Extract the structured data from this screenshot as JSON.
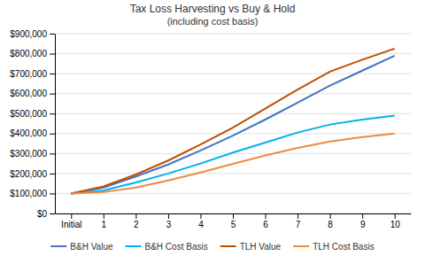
{
  "chart_data": {
    "type": "line",
    "title": "Tax Loss Harvesting vs Buy & Hold",
    "subtitle": "(including cost basis)",
    "categories": [
      "Initial",
      "1",
      "2",
      "3",
      "4",
      "5",
      "6",
      "7",
      "8",
      "9",
      "10"
    ],
    "series": [
      {
        "name": "B&H Value",
        "color": "#4472C4",
        "values": [
          100000,
          130000,
          185000,
          245000,
          315000,
          390000,
          470000,
          555000,
          640000,
          715000,
          790000
        ]
      },
      {
        "name": "B&H Cost Basis",
        "color": "#00B0F0",
        "values": [
          100000,
          115000,
          155000,
          200000,
          250000,
          305000,
          355000,
          405000,
          445000,
          470000,
          490000
        ]
      },
      {
        "name": "TLH Value",
        "color": "#BF4F00",
        "values": [
          100000,
          135000,
          195000,
          265000,
          345000,
          430000,
          525000,
          620000,
          710000,
          770000,
          825000
        ]
      },
      {
        "name": "TLH Cost Basis",
        "color": "#ED8A3F",
        "values": [
          100000,
          107000,
          130000,
          165000,
          205000,
          248000,
          290000,
          328000,
          360000,
          382000,
          400000
        ]
      }
    ],
    "ylim": [
      0,
      900000
    ],
    "yticks": [
      {
        "value": 0,
        "label": "$0"
      },
      {
        "value": 100000,
        "label": "$100,000"
      },
      {
        "value": 200000,
        "label": "$200,000"
      },
      {
        "value": 300000,
        "label": "$300,000"
      },
      {
        "value": 400000,
        "label": "$400,000"
      },
      {
        "value": 500000,
        "label": "$500,000"
      },
      {
        "value": 600000,
        "label": "$600,000"
      },
      {
        "value": 700000,
        "label": "$700,000"
      },
      {
        "value": 800000,
        "label": "$800,000"
      },
      {
        "value": 900000,
        "label": "$900,000"
      }
    ],
    "grid": true,
    "legend": "bottom"
  }
}
